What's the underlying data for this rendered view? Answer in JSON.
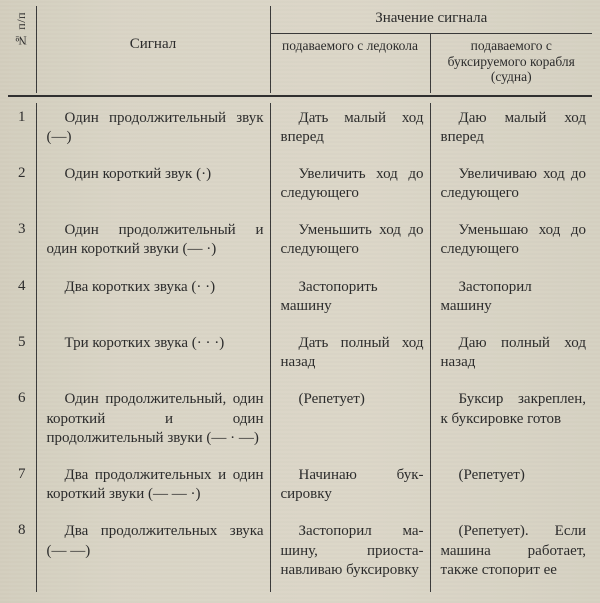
{
  "header": {
    "col_num": "№ п/п",
    "col_signal": "Сигнал",
    "col_meaning_top": "Значение сигнала",
    "col_meaning_a": "подаваемого с ледокола",
    "col_meaning_b": "подаваемого с буксируемого корабля (судна)"
  },
  "rows": [
    {
      "n": "1",
      "signal": "Один продолжитель­ный звук (—)",
      "a": "Дать малый ход вперед",
      "b": "Даю малый ход вперед"
    },
    {
      "n": "2",
      "signal": "Один короткий звук (·)",
      "a": "Увеличить ход до следующего",
      "b": "Увеличиваю ход до следующего"
    },
    {
      "n": "3",
      "signal": "Один продолжитель­ный и один короткий звуки (— ·)",
      "a": "Уменьшить ход до следующего",
      "b": "Уменьшаю ход до следующего"
    },
    {
      "n": "4",
      "signal": "Два коротких звука (· ·)",
      "a": "Застопорить машину",
      "b": "Застопорил машину"
    },
    {
      "n": "5",
      "signal": "Три коротких звука (· · ·)",
      "a": "Дать полный ход назад",
      "b": "Даю полный ход назад"
    },
    {
      "n": "6",
      "signal": "Один продолжитель­ный, один короткий и один продолжительный звуки (— · —)",
      "a": "(Репетует)",
      "b": "Буксир закреп­лен, к буксировке готов"
    },
    {
      "n": "7",
      "signal": "Два продолжительных и один короткий звуки (— — ·)",
      "a": "Начинаю бук­сировку",
      "b": "(Репетует)"
    },
    {
      "n": "8",
      "signal": "Два продолжительных звука (— —)",
      "a": "Застопорил ма­шину, приоста­навливаю букси­ровку",
      "b": "(Репетует). Если машина работает, также стопорит ее"
    }
  ]
}
